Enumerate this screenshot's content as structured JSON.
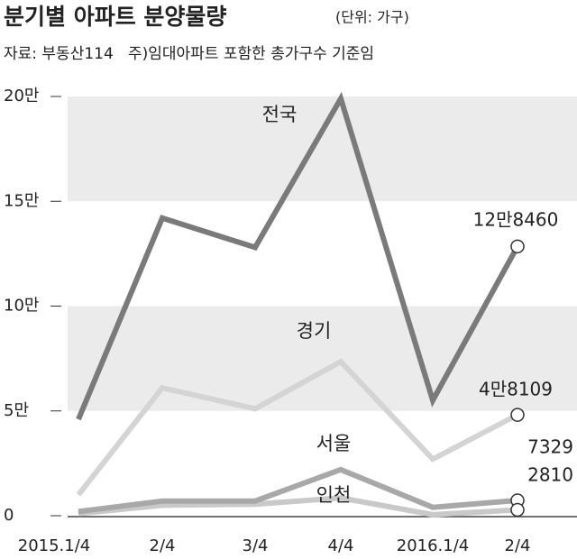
{
  "chart_data": {
    "type": "line",
    "title": "분기별 아파트 분양물량",
    "unit": "(단위: 가구)",
    "subtitle": "자료: 부동산114   주)임대아파트 포함한 총가구수 기준임",
    "categories": [
      "2015.1/4",
      "2/4",
      "3/4",
      "4/4",
      "2016.1/4",
      "2/4"
    ],
    "series": [
      {
        "name": "전국",
        "color": "#7a7a7a",
        "values": [
          46000,
          142000,
          128000,
          199000,
          55000,
          128460
        ],
        "value_labels": [
          null,
          null,
          null,
          null,
          null,
          "12만8460"
        ]
      },
      {
        "name": "경기",
        "color": "#d4d4d4",
        "values": [
          10000,
          61000,
          51000,
          73500,
          27000,
          48109
        ],
        "value_labels": [
          null,
          null,
          null,
          null,
          null,
          "4만8109"
        ]
      },
      {
        "name": "서울",
        "color": "#a8a8a8",
        "values": [
          2000,
          7000,
          7000,
          22000,
          4000,
          7329
        ]
      },
      {
        "name": "인천",
        "color": "#c9c9c9",
        "values": [
          1000,
          5000,
          5500,
          8500,
          500,
          2810
        ]
      }
    ],
    "ylim": [
      0,
      200000
    ],
    "yticks": [
      0,
      {
        "value": 50000,
        "label": "5만"
      },
      {
        "value": 100000,
        "label": "10만"
      },
      {
        "value": 150000,
        "label": "15만"
      },
      {
        "value": 200000,
        "label": "20만"
      }
    ],
    "grid": "bands"
  }
}
